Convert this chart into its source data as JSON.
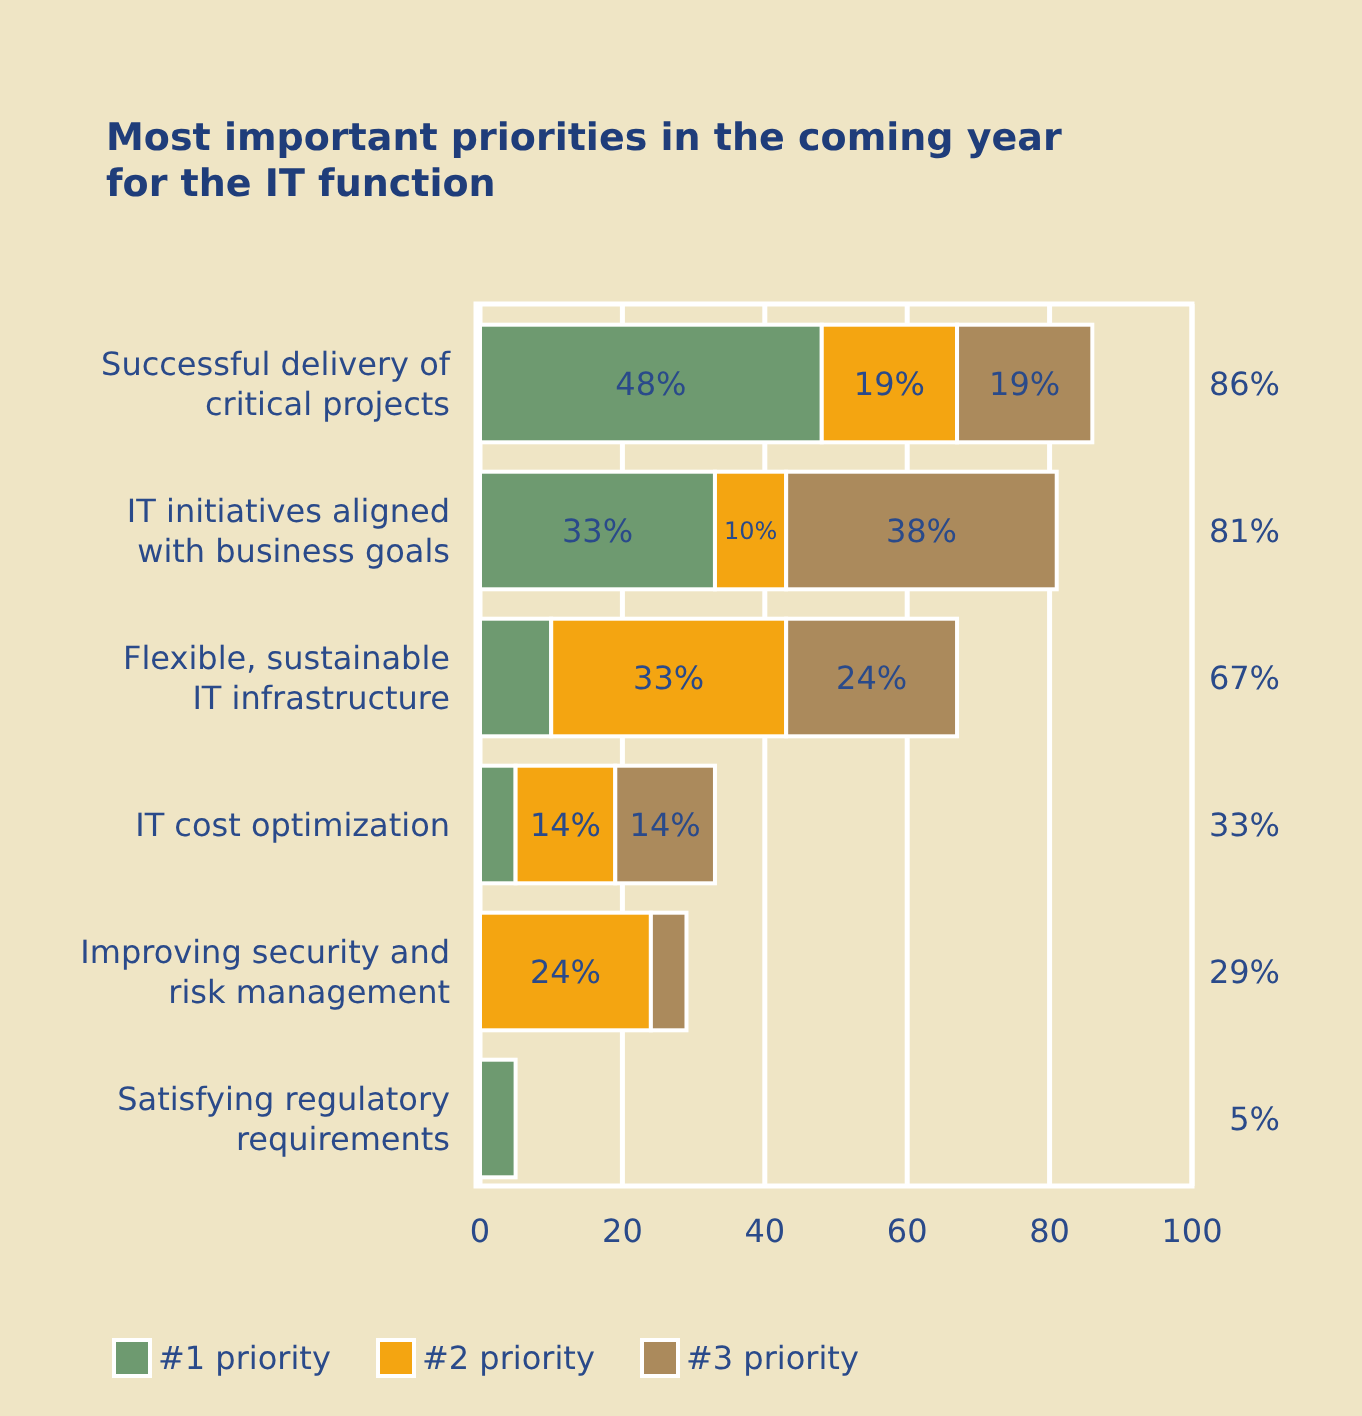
{
  "chart_data": {
    "type": "bar",
    "orientation": "horizontal",
    "stacked": true,
    "title": "Most important priorities in the coming year for the IT function",
    "categories": [
      "Successful delivery of critical projects",
      "IT initiatives aligned with business goals",
      "Flexible, sustainable IT infrastructure",
      "IT cost optimization",
      "Improving security and risk management",
      "Satisfying regulatory requirements"
    ],
    "series": [
      {
        "name": "#1 priority",
        "color": "#6e9a70",
        "values": [
          48,
          33,
          10,
          5,
          0,
          5
        ],
        "value_labels": [
          "48%",
          "33%",
          null,
          null,
          null,
          null
        ]
      },
      {
        "name": "#2 priority",
        "color": "#f4a511",
        "values": [
          19,
          10,
          33,
          14,
          24,
          0
        ],
        "value_labels": [
          "19%",
          "10%",
          "33%",
          "14%",
          "24%",
          null
        ]
      },
      {
        "name": "#3 priority",
        "color": "#ab8a5c",
        "values": [
          19,
          38,
          24,
          14,
          5,
          0
        ],
        "value_labels": [
          "19%",
          "38%",
          "24%",
          "14%",
          null,
          null
        ]
      }
    ],
    "annotations": [
      "86%",
      "81%",
      "67%",
      "33%",
      "29%",
      "5%"
    ],
    "xlim": [
      0,
      100
    ],
    "xticks": [
      0,
      20,
      40,
      60,
      80,
      100
    ],
    "grid": "x",
    "legend": "bottom"
  }
}
